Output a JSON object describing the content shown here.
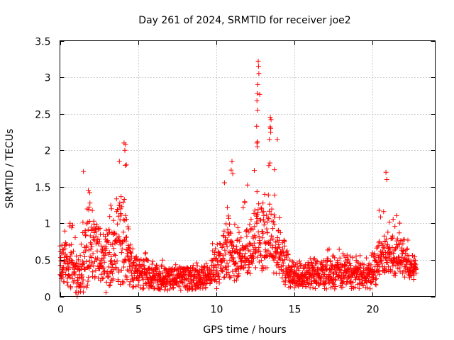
{
  "chart_data": {
    "type": "scatter",
    "title": "Day 261 of 2024, SRMTID for receiver joe2",
    "xlabel": "GPS time / hours",
    "ylabel": "SRMTID / TECUs",
    "xlim": [
      0,
      24
    ],
    "ylim": [
      0,
      3.5
    ],
    "xticks": [
      0,
      5,
      10,
      15,
      20
    ],
    "xtick_labels": [
      "0",
      "5",
      "10",
      "15",
      "20"
    ],
    "yticks": [
      0,
      0.5,
      1,
      1.5,
      2,
      2.5,
      3,
      3.5
    ],
    "ytick_labels": [
      "0",
      "0.5",
      "1",
      "1.5",
      "2",
      "2.5",
      "3",
      "3.5"
    ],
    "grid": true,
    "marker": "plus",
    "color": "#ff0000",
    "series": [
      {
        "name": "SRMTID",
        "profile": {
          "hours": [
            0.0,
            0.5,
            1.0,
            1.3,
            1.6,
            1.9,
            2.2,
            2.6,
            3.0,
            3.4,
            3.7,
            4.0,
            4.3,
            4.6,
            5.0,
            5.5,
            6.0,
            7.0,
            8.0,
            9.0,
            9.5,
            10.0,
            10.4,
            10.8,
            11.2,
            11.6,
            12.0,
            12.4,
            12.7,
            13.0,
            13.4,
            13.8,
            14.2,
            14.6,
            15.0,
            15.5,
            16.0,
            17.0,
            18.0,
            18.5,
            19.0,
            19.5,
            20.0,
            20.4,
            20.8,
            21.2,
            21.6,
            22.0,
            22.4,
            22.8
          ],
          "median": [
            0.5,
            0.5,
            0.4,
            0.35,
            0.7,
            0.9,
            0.75,
            0.7,
            0.6,
            0.7,
            0.8,
            0.95,
            0.7,
            0.45,
            0.35,
            0.35,
            0.3,
            0.28,
            0.27,
            0.3,
            0.3,
            0.45,
            0.6,
            0.75,
            0.55,
            0.6,
            0.7,
            0.8,
            0.95,
            0.8,
            0.9,
            0.75,
            0.6,
            0.4,
            0.3,
            0.3,
            0.35,
            0.35,
            0.4,
            0.38,
            0.35,
            0.3,
            0.35,
            0.55,
            0.7,
            0.65,
            0.6,
            0.5,
            0.45,
            0.4
          ],
          "max": [
            0.9,
            1.0,
            1.1,
            1.7,
            1.45,
            1.45,
            1.0,
            1.0,
            1.25,
            1.35,
            1.85,
            2.1,
            1.7,
            0.7,
            0.6,
            0.6,
            0.5,
            0.5,
            0.5,
            0.55,
            0.65,
            1.05,
            1.85,
            1.7,
            1.0,
            1.45,
            1.6,
            2.1,
            3.22,
            1.6,
            2.45,
            2.15,
            0.85,
            0.6,
            0.55,
            0.5,
            0.55,
            0.65,
            0.7,
            0.7,
            0.6,
            0.55,
            0.7,
            1.2,
            1.7,
            1.15,
            1.1,
            0.9,
            0.7,
            0.5
          ],
          "min": [
            0.2,
            0.15,
            0.0,
            0.0,
            0.0,
            0.2,
            0.25,
            0.2,
            0.0,
            0.2,
            0.2,
            0.1,
            0.15,
            0.1,
            0.1,
            0.1,
            0.1,
            0.08,
            0.08,
            0.1,
            0.1,
            0.1,
            0.2,
            0.25,
            0.2,
            0.3,
            0.3,
            0.3,
            0.35,
            0.35,
            0.35,
            0.3,
            0.2,
            0.1,
            0.1,
            0.1,
            0.1,
            0.1,
            0.1,
            0.1,
            0.1,
            0.1,
            0.1,
            0.2,
            0.3,
            0.3,
            0.25,
            0.2,
            0.2,
            0.2
          ]
        },
        "peaks": [
          {
            "x": 12.68,
            "y": 3.22
          },
          {
            "x": 12.7,
            "y": 3.15
          },
          {
            "x": 12.72,
            "y": 3.05
          },
          {
            "x": 12.66,
            "y": 2.9
          },
          {
            "x": 12.62,
            "y": 2.78
          },
          {
            "x": 12.6,
            "y": 2.68
          },
          {
            "x": 12.64,
            "y": 2.55
          },
          {
            "x": 12.58,
            "y": 2.33
          },
          {
            "x": 12.6,
            "y": 2.1
          },
          {
            "x": 12.62,
            "y": 2.05
          },
          {
            "x": 13.45,
            "y": 2.45
          },
          {
            "x": 13.5,
            "y": 2.42
          },
          {
            "x": 13.48,
            "y": 2.3
          },
          {
            "x": 13.4,
            "y": 2.15
          },
          {
            "x": 13.9,
            "y": 2.15
          },
          {
            "x": 4.1,
            "y": 2.1
          },
          {
            "x": 4.2,
            "y": 2.08
          },
          {
            "x": 4.15,
            "y": 2.0
          },
          {
            "x": 3.8,
            "y": 1.85
          },
          {
            "x": 4.25,
            "y": 1.8
          },
          {
            "x": 11.0,
            "y": 1.85
          },
          {
            "x": 10.95,
            "y": 1.73
          },
          {
            "x": 11.05,
            "y": 1.68
          },
          {
            "x": 1.5,
            "y": 1.71
          },
          {
            "x": 20.85,
            "y": 1.7
          },
          {
            "x": 20.9,
            "y": 1.6
          },
          {
            "x": 1.82,
            "y": 1.45
          },
          {
            "x": 1.9,
            "y": 1.42
          },
          {
            "x": 3.25,
            "y": 1.25
          },
          {
            "x": 3.3,
            "y": 1.2
          }
        ]
      }
    ]
  }
}
